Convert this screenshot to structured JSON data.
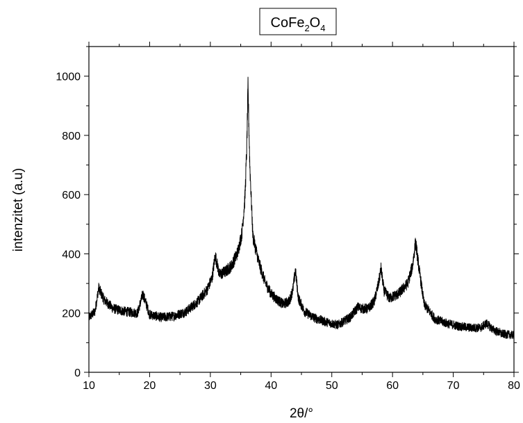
{
  "chart_data": {
    "type": "line",
    "title": {
      "base": "CoFe",
      "sub1": "2",
      "mid": "O",
      "sub2": "4"
    },
    "xlabel": "2θ/°",
    "ylabel": "intenzitet (a.u)",
    "xlim": [
      10,
      80
    ],
    "ylim": [
      0,
      1100
    ],
    "x_ticks": [
      10,
      20,
      30,
      40,
      50,
      60,
      70,
      80
    ],
    "y_ticks": [
      0,
      200,
      400,
      600,
      800,
      1000
    ],
    "x_tick_labels": [
      "10",
      "20",
      "30",
      "40",
      "50",
      "60",
      "70",
      "80"
    ],
    "y_tick_labels": [
      "0",
      "200",
      "400",
      "600",
      "800",
      "1000"
    ],
    "grid": false,
    "legend": "none",
    "line_color": "#000000",
    "series": [
      {
        "x": [
          10,
          11,
          11.6,
          12.5,
          14,
          16,
          18,
          18.9,
          20,
          22,
          24,
          26,
          28,
          29.5,
          30.3,
          30.8,
          31.5,
          32.5,
          33.5,
          34.5,
          35.2,
          35.7,
          36.0,
          36.2,
          36.5,
          37.0,
          38,
          39,
          40,
          41,
          42,
          43,
          43.6,
          44.0,
          44.5,
          45.5,
          47,
          49,
          51,
          53,
          54.3,
          55,
          56,
          57,
          57.7,
          58.1,
          58.6,
          59.5,
          61,
          62.5,
          63.3,
          63.8,
          64.3,
          65.2,
          67,
          69,
          71,
          73,
          74.5,
          75.5,
          76.5,
          78,
          80
        ],
        "y": [
          185,
          205,
          285,
          245,
          215,
          205,
          200,
          265,
          195,
          185,
          190,
          205,
          240,
          280,
          320,
          395,
          330,
          340,
          360,
          405,
          470,
          590,
          760,
          960,
          700,
          460,
          370,
          305,
          265,
          245,
          230,
          240,
          280,
          345,
          250,
          205,
          185,
          170,
          160,
          185,
          220,
          215,
          215,
          240,
          300,
          350,
          275,
          250,
          265,
          300,
          360,
          440,
          360,
          230,
          180,
          165,
          155,
          150,
          150,
          165,
          145,
          130,
          125
        ]
      }
    ]
  }
}
